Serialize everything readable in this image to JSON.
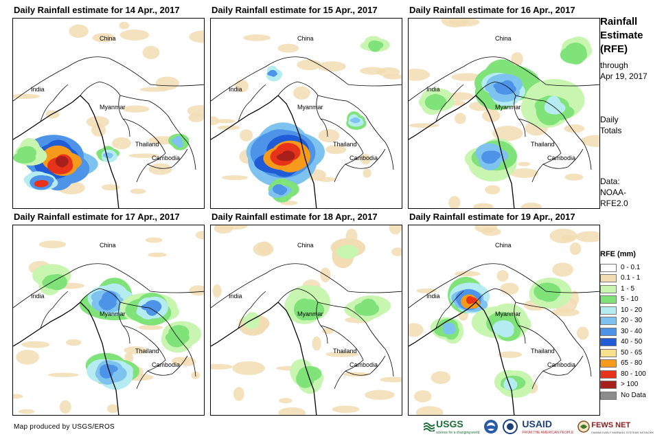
{
  "panels": [
    {
      "title": "Daily Rainfall estimate for 14 Apr., 2017",
      "labels": {
        "china": "China",
        "india": "India",
        "myanmar": "Myanmar",
        "thailand": "Thailand",
        "cambodia": "Cambodia"
      }
    },
    {
      "title": "Daily Rainfall estimate for 15 Apr., 2017",
      "labels": {
        "china": "China",
        "india": "India",
        "myanmar": "Myanmar",
        "thailand": "Thailand",
        "cambodia": "Cambodia"
      }
    },
    {
      "title": "Daily Rainfall estimate for 16 Apr., 2017",
      "labels": {
        "china": "China",
        "india": "India",
        "myanmar": "Myanmar",
        "thailand": "Thailand",
        "cambodia": "Cambodia"
      }
    },
    {
      "title": "Daily Rainfall estimate for 17 Apr., 2017",
      "labels": {
        "china": "China",
        "india": "India",
        "myanmar": "Myanmar",
        "thailand": "Thailand",
        "cambodia": "Cambodia"
      }
    },
    {
      "title": "Daily Rainfall estimate for 18 Apr., 2017",
      "labels": {
        "china": "China",
        "india": "India",
        "myanmar": "Myanmar",
        "thailand": "Thailand",
        "cambodia": "Cambodia"
      }
    },
    {
      "title": "Daily Rainfall estimate for 19 Apr., 2017",
      "labels": {
        "china": "China",
        "india": "India",
        "myanmar": "Myanmar",
        "thailand": "Thailand",
        "cambodia": "Cambodia"
      }
    }
  ],
  "sidebar": {
    "title_line1": "Rainfall",
    "title_line2": "Estimate",
    "title_line3": "(RFE)",
    "through": "through",
    "date": "Apr 19, 2017",
    "daily_line1": "Daily",
    "daily_line2": "Totals",
    "data_line1": "Data:",
    "data_line2": "NOAA-",
    "data_line3": "RFE2.0"
  },
  "legend": {
    "title": "RFE (mm)",
    "items": [
      {
        "label": "0 - 0.1",
        "color": "#ffffff"
      },
      {
        "label": "0.1 - 1",
        "color": "#f2dcb3"
      },
      {
        "label": "1 - 5",
        "color": "#c8f5b0"
      },
      {
        "label": "5 - 10",
        "color": "#7fe37a"
      },
      {
        "label": "10 - 20",
        "color": "#b4ecf2"
      },
      {
        "label": "20 - 30",
        "color": "#7ec2ef"
      },
      {
        "label": "30 - 40",
        "color": "#4d93e8"
      },
      {
        "label": "40 - 50",
        "color": "#1f5cd6"
      },
      {
        "label": "50 - 65",
        "color": "#f9e08c"
      },
      {
        "label": "65 - 80",
        "color": "#f59a1a"
      },
      {
        "label": "80 - 100",
        "color": "#e8331a"
      },
      {
        "label": "> 100",
        "color": "#a8201c"
      },
      {
        "label": "No Data",
        "color": "#8c8c8c"
      }
    ]
  },
  "footer": {
    "credit": "Map produced by USGS/EROS",
    "logos": {
      "usgs": "USGS",
      "usgs_tagline": "science for a changing world",
      "usaid": "USAID",
      "usaid_tagline": "FROM THE AMERICAN PEOPLE",
      "fewsnet": "FEWS NET",
      "fewsnet_tagline": "FAMINE EARLY WARNING SYSTEMS NETWORK"
    }
  }
}
